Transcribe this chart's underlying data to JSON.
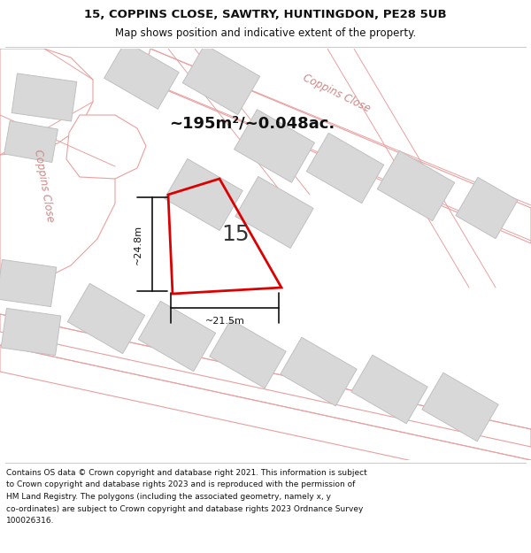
{
  "title_line1": "15, COPPINS CLOSE, SAWTRY, HUNTINGDON, PE28 5UB",
  "title_line2": "Map shows position and indicative extent of the property.",
  "area_text": "~195m²/~0.048ac.",
  "house_number": "15",
  "dim_width": "~21.5m",
  "dim_height": "~24.8m",
  "footer_lines": [
    "Contains OS data © Crown copyright and database right 2021. This information is subject",
    "to Crown copyright and database rights 2023 and is reproduced with the permission of",
    "HM Land Registry. The polygons (including the associated geometry, namely x, y",
    "co-ordinates) are subject to Crown copyright and database rights 2023 Ordnance Survey",
    "100026316."
  ],
  "map_bg": "#f7f7f7",
  "road_fill": "#ffffff",
  "road_line": "#e8a0a0",
  "building_fill": "#d8d8d8",
  "building_edge": "#c0c0c0",
  "plot_color": "#dd0000",
  "label_color": "#cc8888",
  "dim_color": "#111111",
  "title_color": "#111111",
  "footer_color": "#111111",
  "area_color": "#111111"
}
